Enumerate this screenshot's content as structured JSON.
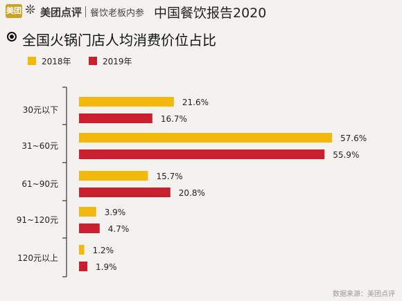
{
  "header": {
    "logo_text": "美团",
    "brand": "美团点评",
    "sub_brand": "餐饮老板内参",
    "report_title": "中国餐饮报告2020"
  },
  "colors": {
    "series_2018": "#f2b90c",
    "series_2019": "#c8202f",
    "axis": "#333333"
  },
  "footer": {
    "source": "数据来源：美团点评"
  },
  "chart_data": {
    "type": "bar",
    "orientation": "horizontal",
    "title": "全国火锅门店人均消费价位占比",
    "categories": [
      "30元以下",
      "31~60元",
      "61~90元",
      "91~120元",
      "120元以上"
    ],
    "series": [
      {
        "name": "2018年",
        "values": [
          21.6,
          57.6,
          15.7,
          3.9,
          1.2
        ],
        "labels": [
          "21.6%",
          "57.6%",
          "15.7%",
          "3.9%",
          "1.2%"
        ]
      },
      {
        "name": "2019年",
        "values": [
          16.7,
          55.9,
          20.8,
          4.7,
          1.9
        ],
        "labels": [
          "16.7%",
          "55.9%",
          "20.8%",
          "4.7%",
          "1.9%"
        ]
      }
    ],
    "unit": "%",
    "legend_position": "top-left",
    "grid": false
  }
}
